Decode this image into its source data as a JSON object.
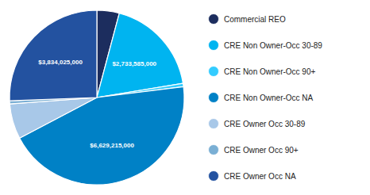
{
  "chart_data": {
    "type": "pie",
    "categories": [
      "Commercial REO",
      "CRE Non Owner-Occ 30-89",
      "CRE Non Owner-Occ 90+",
      "CRE Non Owner-Occ NA",
      "CRE Owner Occ 30-89",
      "CRE Owner Occ 90+",
      "CRE Owner Occ NA"
    ],
    "values": [
      620000000,
      2733585000,
      95000000,
      6629215000,
      980000000,
      85000000,
      3834025000
    ],
    "value_labels": [
      null,
      "$2,733,585,000",
      null,
      "$6,629,215,000",
      null,
      null,
      "$3,834,025,000"
    ],
    "data_labels": true,
    "colors": [
      "#1c2d5e",
      "#00b4f0",
      "#33ccff",
      "#0081c6",
      "#a8c8e8",
      "#7aafd4",
      "#2352a0"
    ],
    "legend": "right"
  }
}
